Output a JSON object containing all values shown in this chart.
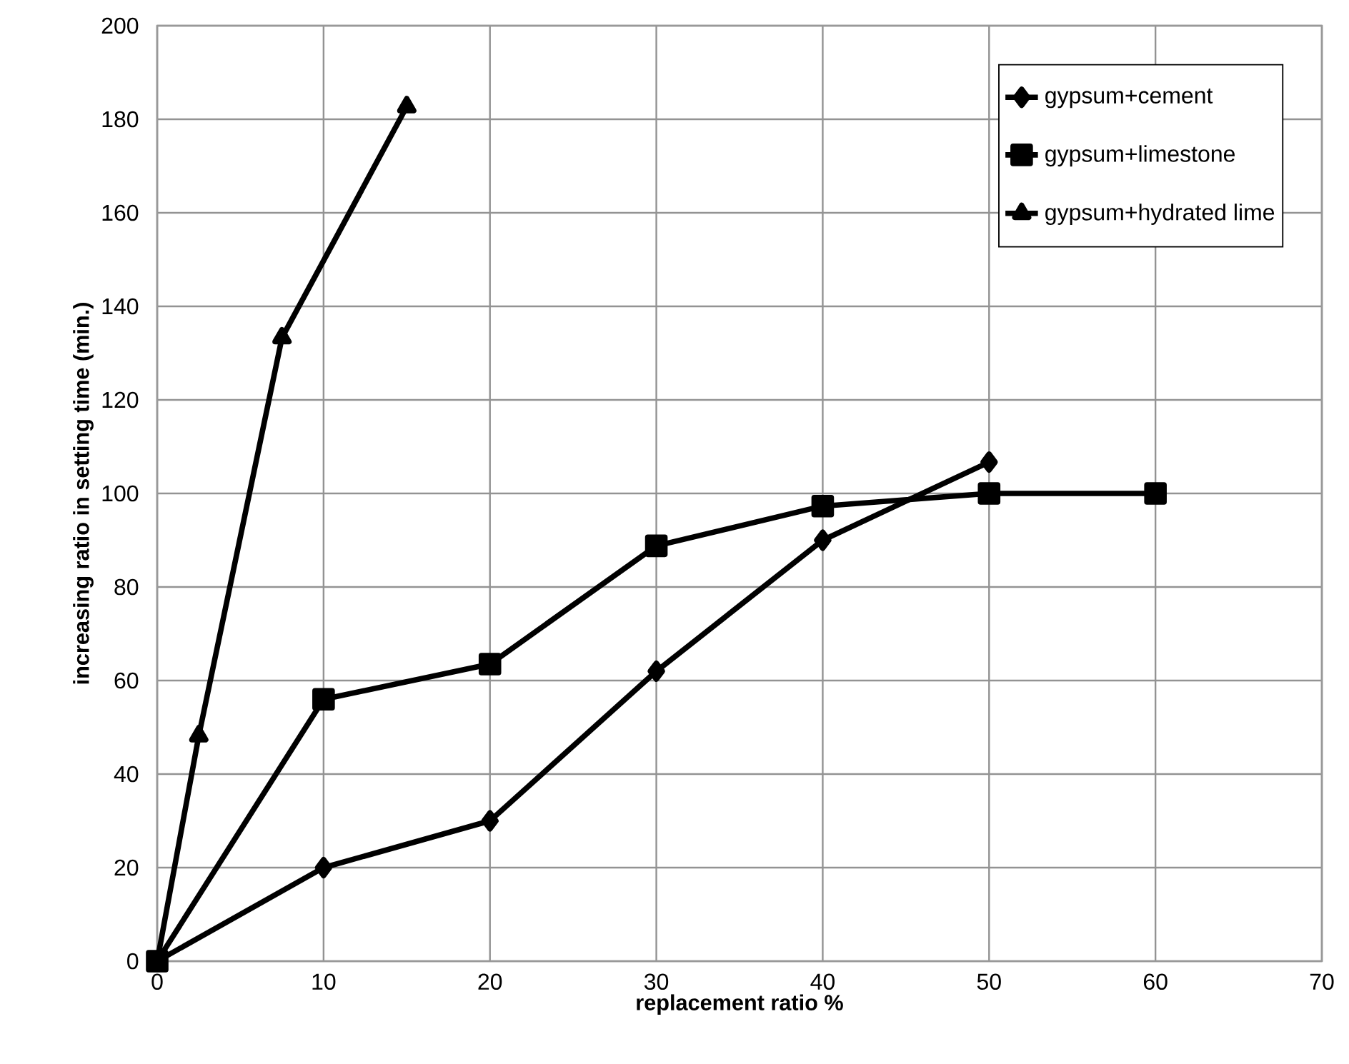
{
  "chart_data": {
    "type": "line",
    "xlabel": "replacement ratio %",
    "ylabel": "increasing ratio in setting time (min.)",
    "xlim": [
      0,
      70
    ],
    "xticks": [
      0,
      10,
      20,
      30,
      40,
      50,
      60,
      70
    ],
    "ylim": [
      0,
      200
    ],
    "yticks": [
      0,
      20,
      40,
      60,
      80,
      100,
      120,
      140,
      160,
      180,
      200
    ],
    "grid": true,
    "legend": "top right",
    "line_style": "solid",
    "series": [
      {
        "name": "gypsum+cement",
        "color": "#000000",
        "marker": "diamond",
        "x": [
          0,
          10,
          20,
          30,
          40,
          50
        ],
        "values": [
          0,
          20,
          30,
          62,
          90,
          106.7
        ]
      },
      {
        "name": "gypsum+limestone",
        "color": "#000000",
        "marker": "square",
        "x": [
          0,
          10,
          20,
          30,
          40,
          50,
          60
        ],
        "values": [
          0,
          56,
          63.5,
          88.8,
          97.3,
          100,
          100
        ]
      },
      {
        "name": "gypsum+hydrated lime",
        "color": "#000000",
        "marker": "triangle",
        "x": [
          0,
          2.5,
          7.5,
          15
        ],
        "values": [
          0,
          48.2,
          133.3,
          182.7
        ]
      }
    ]
  }
}
